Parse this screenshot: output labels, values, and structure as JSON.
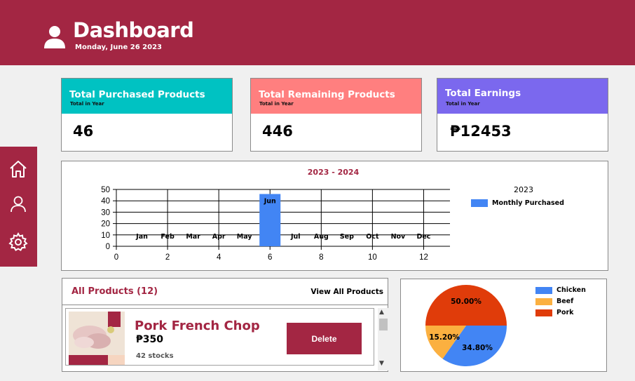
{
  "header": {
    "title": "Dashboard",
    "date": "Monday, June 26 2023",
    "icon": "user-icon"
  },
  "sidebar": {
    "items": [
      {
        "name": "home",
        "icon": "home-icon"
      },
      {
        "name": "profile",
        "icon": "user-icon"
      },
      {
        "name": "settings",
        "icon": "gear-icon"
      }
    ]
  },
  "cards": [
    {
      "title": "Total Purchased Products",
      "subtitle": "Total in Year",
      "value": "46",
      "color": "#00c2c2"
    },
    {
      "title": "Total Remaining Products",
      "subtitle": "Total in Year",
      "value": "446",
      "color": "#ff7f7f"
    },
    {
      "title": "Total Earnings",
      "subtitle": "Total in Year",
      "value": "₱12453",
      "color": "#7b68ee"
    }
  ],
  "chart_data": [
    {
      "type": "bar",
      "title": "2023 - 2024",
      "legend_title": "2023",
      "series": [
        {
          "name": "Monthly Purchased",
          "color": "#4285f4",
          "x": [
            6
          ],
          "values": [
            46
          ]
        }
      ],
      "category_labels": [
        {
          "label": "Jan",
          "x": 1
        },
        {
          "label": "Feb",
          "x": 2
        },
        {
          "label": "Mar",
          "x": 3
        },
        {
          "label": "Apr",
          "x": 4
        },
        {
          "label": "May",
          "x": 5
        },
        {
          "label": "Jun",
          "x": 6
        },
        {
          "label": "Jul",
          "x": 7
        },
        {
          "label": "Aug",
          "x": 8
        },
        {
          "label": "Sep",
          "x": 9
        },
        {
          "label": "Oct",
          "x": 10
        },
        {
          "label": "Nov",
          "x": 11
        },
        {
          "label": "Dec",
          "x": 12
        }
      ],
      "xticks": [
        0,
        2,
        4,
        6,
        8,
        10,
        12
      ],
      "yticks": [
        0,
        10,
        20,
        30,
        40,
        50
      ],
      "xlim": [
        0,
        13
      ],
      "ylim": [
        0,
        50
      ],
      "grid": true,
      "legend": "right"
    },
    {
      "type": "pie",
      "slices": [
        {
          "name": "Chicken",
          "value": 34.8,
          "label": "34.80%",
          "color": "#4285f4"
        },
        {
          "name": "Beef",
          "value": 15.2,
          "label": "15.20%",
          "color": "#fbb040"
        },
        {
          "name": "Pork",
          "value": 50.0,
          "label": "50.00%",
          "color": "#e03c0a"
        }
      ],
      "legend": "right"
    }
  ],
  "products": {
    "title": "All Products (12)",
    "view_all": "View All Products",
    "items": [
      {
        "name": "Pork French Chop",
        "price": "₱350",
        "stock": "42 stocks",
        "delete_label": "Delete"
      }
    ]
  },
  "colors": {
    "brand": "#a32643",
    "background": "#f0f0f0"
  }
}
